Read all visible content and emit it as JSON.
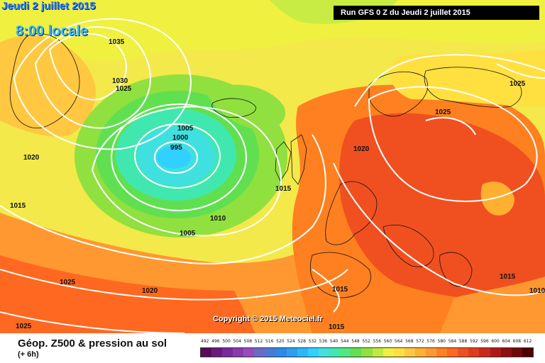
{
  "header": {
    "date_label": "Jeudi 2 juillet 2015",
    "time_label": "8:00 locale",
    "run_label": "Run GFS 0 Z du Jeudi 2 juillet 2015"
  },
  "copyright": "Copyright © 2015 Meteociel.fr",
  "footer": {
    "title": "Géop. Z500 & pression au sol",
    "subtitle": "(+ 6h)"
  },
  "isobars": [
    "1035",
    "1030",
    "1025",
    "1005",
    "1000",
    "995",
    "1020",
    "1015",
    "1010",
    "1005",
    "1015",
    "1025",
    "1025",
    "1020",
    "1015",
    "1025",
    "1020",
    "1015",
    "1025",
    "1015",
    "1010"
  ],
  "legend": {
    "values": [
      "492",
      "496",
      "500",
      "504",
      "508",
      "512",
      "516",
      "520",
      "524",
      "528",
      "532",
      "536",
      "540",
      "544",
      "548",
      "552",
      "556",
      "560",
      "564",
      "568",
      "572",
      "576",
      "580",
      "584",
      "588",
      "592",
      "596",
      "600",
      "604",
      "608",
      "612"
    ],
    "colors": [
      "#5a0a5a",
      "#6a1a7a",
      "#7a2a9a",
      "#8a3aaa",
      "#9a4aba",
      "#6a6ac8",
      "#4a7ad8",
      "#2a8ae8",
      "#2aa0f0",
      "#2ab8f8",
      "#30d0ff",
      "#40e0e0",
      "#40e8b0",
      "#50e880",
      "#60e050",
      "#90e040",
      "#c0e840",
      "#f0f040",
      "#ffe040",
      "#ffc840",
      "#ffb030",
      "#ff9830",
      "#ff8020",
      "#ff6820",
      "#f05020",
      "#e03c1c",
      "#cc281a",
      "#b01818",
      "#901010",
      "#700808",
      "#500000"
    ]
  }
}
